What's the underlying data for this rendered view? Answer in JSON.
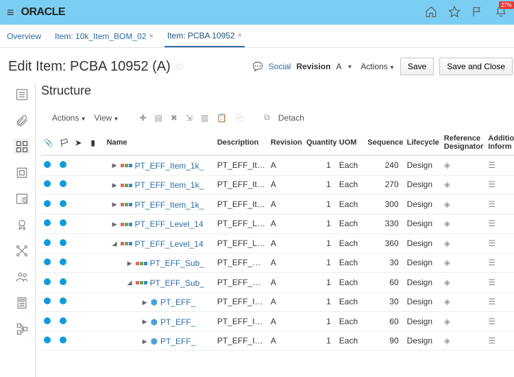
{
  "colors": {
    "topbar_bg": "#7bcef2",
    "link": "#2b6ca3",
    "dot": "#0d9bdc",
    "badge": "#e53935"
  },
  "topbar": {
    "logo": "ORACLE",
    "notif_count": "27%"
  },
  "tabs": [
    {
      "label": "Overview",
      "closable": false,
      "active": false
    },
    {
      "label": "Item: 10k_Item_BOM_02",
      "closable": true,
      "active": false
    },
    {
      "label": "Item: PCBA 10952",
      "closable": true,
      "active": true
    }
  ],
  "page": {
    "title": "Edit Item: PCBA 10952 (A)",
    "social_label": "Social",
    "revision_label": "Revision",
    "revision_value": "A",
    "actions_label": "Actions",
    "save_label": "Save",
    "save_close_label": "Save and Close"
  },
  "panel": {
    "title": "Structure",
    "toolbar": {
      "actions": "Actions",
      "view": "View",
      "detach": "Detach"
    },
    "columns": {
      "name": "Name",
      "description": "Description",
      "revision": "Revision",
      "quantity": "Quantity",
      "uom": "UOM",
      "sequence": "Sequence",
      "lifecycle": "Lifecycle",
      "refdes": "Reference Designator",
      "addl": "Additional Inform"
    },
    "rows": [
      {
        "indent": 0,
        "icon": "tri",
        "arrow": "▶",
        "name": "PT_EFF_Item_1k_",
        "desc": "PT_EFF_Ite...",
        "rev": "A",
        "qty": 1,
        "uom": "Each",
        "seq": 240,
        "life": "Design"
      },
      {
        "indent": 0,
        "icon": "tri",
        "arrow": "▶",
        "name": "PT_EFF_Item_1k_",
        "desc": "PT_EFF_Ite...",
        "rev": "A",
        "qty": 1,
        "uom": "Each",
        "seq": 270,
        "life": "Design"
      },
      {
        "indent": 0,
        "icon": "tri",
        "arrow": "▶",
        "name": "PT_EFF_Item_1k_",
        "desc": "PT_EFF_Ite...",
        "rev": "A",
        "qty": 1,
        "uom": "Each",
        "seq": 300,
        "life": "Design"
      },
      {
        "indent": 0,
        "icon": "tri",
        "arrow": "▶",
        "name": "PT_EFF_Level_14",
        "desc": "PT_EFF_Lev...",
        "rev": "A",
        "qty": 1,
        "uom": "Each",
        "seq": 330,
        "life": "Design"
      },
      {
        "indent": 0,
        "icon": "tri",
        "arrow": "◢",
        "name": "PT_EFF_Level_14",
        "desc": "PT_EFF_Lev...",
        "rev": "A",
        "qty": 1,
        "uom": "Each",
        "seq": 360,
        "life": "Design"
      },
      {
        "indent": 1,
        "icon": "tri",
        "arrow": "▶",
        "name": "PT_EFF_Sub_",
        "desc": "PT_EFF_Su...",
        "rev": "A",
        "qty": 1,
        "uom": "Each",
        "seq": 30,
        "life": "Design"
      },
      {
        "indent": 1,
        "icon": "tri",
        "arrow": "◢",
        "name": "PT_EFF_Sub_",
        "desc": "PT_EFF_Su...",
        "rev": "A",
        "qty": 1,
        "uom": "Each",
        "seq": 60,
        "life": "Design"
      },
      {
        "indent": 2,
        "icon": "cube",
        "arrow": "▶",
        "name": "PT_EFF_",
        "desc": "PT_EFF_ITE...",
        "rev": "A",
        "qty": 1,
        "uom": "Each",
        "seq": 30,
        "life": "Design"
      },
      {
        "indent": 2,
        "icon": "cube",
        "arrow": "▶",
        "name": "PT_EFF_",
        "desc": "PT_EFF_ITE...",
        "rev": "A",
        "qty": 1,
        "uom": "Each",
        "seq": 60,
        "life": "Design"
      },
      {
        "indent": 2,
        "icon": "cube",
        "arrow": "▶",
        "name": "PT_EFF_",
        "desc": "PT_EFF_ITE...",
        "rev": "A",
        "qty": 1,
        "uom": "Each",
        "seq": 90,
        "life": "Design"
      }
    ]
  }
}
